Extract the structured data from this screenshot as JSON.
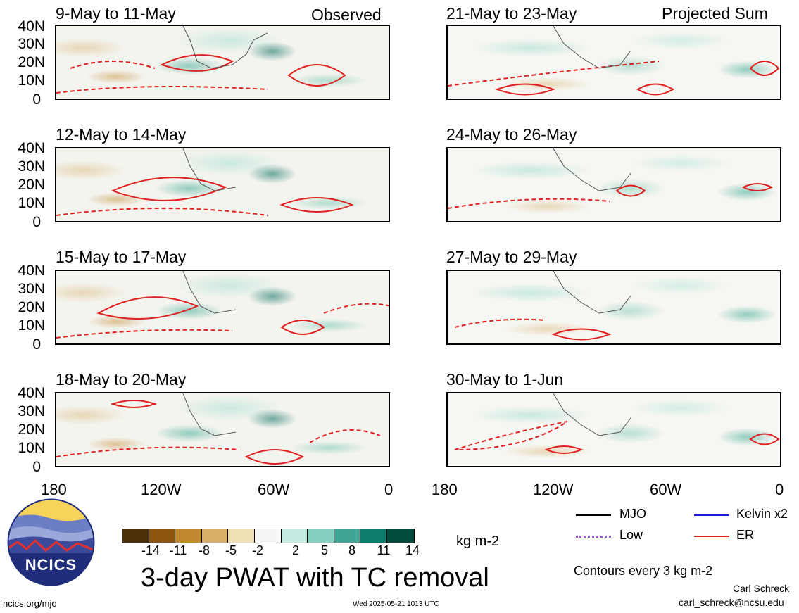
{
  "panels": [
    {
      "title": "9-May to 11-May",
      "label": "Observed"
    },
    {
      "title": "21-May to 23-May",
      "label": "Projected Sum"
    },
    {
      "title": "12-May to 14-May"
    },
    {
      "title": "24-May to 26-May"
    },
    {
      "title": "15-May to 17-May"
    },
    {
      "title": "27-May to 29-May"
    },
    {
      "title": "18-May to 20-May"
    },
    {
      "title": "30-May to 1-Jun"
    }
  ],
  "lat_labels": [
    "40N",
    "30N",
    "20N",
    "10N",
    "0"
  ],
  "lon_labels": [
    "180",
    "120W",
    "60W",
    "0"
  ],
  "colorbar": {
    "tick_labels": [
      "-14",
      "-11",
      "-8",
      "-5",
      "-2",
      "2",
      "5",
      "8",
      "11",
      "14"
    ],
    "units": "kg m-2",
    "colors": [
      "#4d2f08",
      "#8b5510",
      "#c2882f",
      "#d8b06a",
      "#efdfb2",
      "#f5f5f5",
      "#c4ebe2",
      "#85d1bf",
      "#3fa696",
      "#0f7a6e",
      "#014a3c"
    ]
  },
  "legend": {
    "items": [
      {
        "label": "MJO",
        "color": "#000000",
        "style": "solid"
      },
      {
        "label": "Kelvin x2",
        "color": "#1a1ad0",
        "style": "solid"
      },
      {
        "label": "Low",
        "color": "#9b59d6",
        "style": "dotted"
      },
      {
        "label": "ER",
        "color": "#e02020",
        "style": "solid"
      }
    ],
    "contour_note": "Contours every 3 kg m-2"
  },
  "title": "3-day PWAT with TC removal",
  "logo_text": "NCICS",
  "footer": {
    "left": "ncics.org/mjo",
    "center": "Wed 2025-05-21 1013 UTC",
    "author": "Carl Schreck",
    "email": "carl_schreck@ncsu.edu"
  }
}
